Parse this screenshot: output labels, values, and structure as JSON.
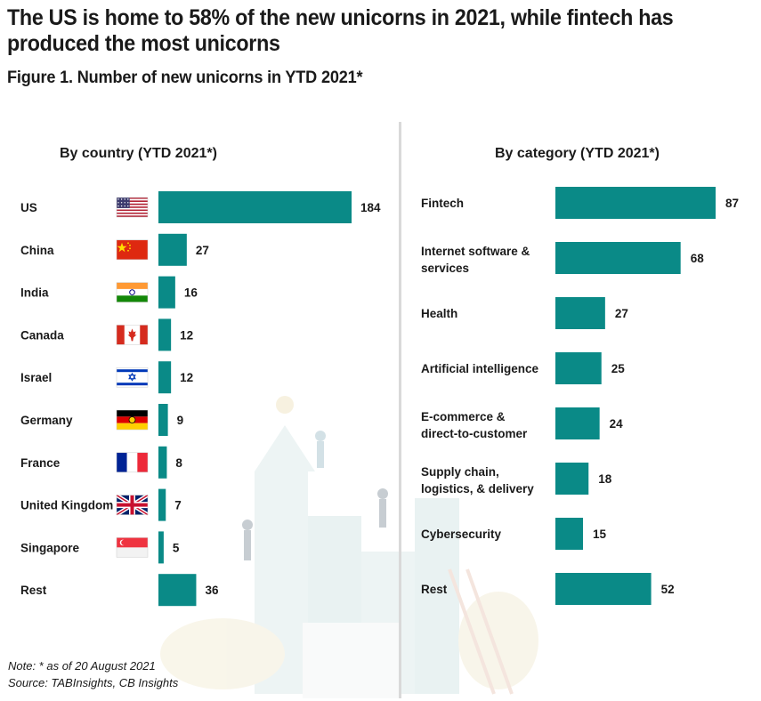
{
  "title": "The US is home to 58% of the new unicorns in 2021, while fintech has produced the most unicorns",
  "subtitle": "Figure 1. Number of new unicorns in YTD 2021*",
  "note": "Note: * as of 20 August 2021",
  "source": "Source: TABInsights, CB Insights",
  "colors": {
    "bar": "#0a8a87",
    "divider": "#d9d9d9",
    "text": "#1a1a1a"
  },
  "chart_data": [
    {
      "type": "bar",
      "orientation": "horizontal",
      "title": "By country (YTD 2021*)",
      "categories": [
        "US",
        "China",
        "India",
        "Canada",
        "Israel",
        "Germany",
        "France",
        "United Kingdom",
        "Singapore",
        "Rest"
      ],
      "icons": [
        "us-flag-icon",
        "china-flag-icon",
        "india-flag-icon",
        "canada-flag-icon",
        "israel-flag-icon",
        "germany-flag-icon",
        "france-flag-icon",
        "uk-flag-icon",
        "singapore-flag-icon",
        ""
      ],
      "values": [
        184,
        27,
        16,
        12,
        12,
        9,
        8,
        7,
        5,
        36
      ],
      "xlim": [
        0,
        184
      ],
      "grid": false
    },
    {
      "type": "bar",
      "orientation": "horizontal",
      "title": "By category (YTD 2021*)",
      "categories": [
        [
          "Fintech"
        ],
        [
          "Internet software &",
          "services"
        ],
        [
          "Health"
        ],
        [
          "Artificial intelligence"
        ],
        [
          "E-commerce &",
          "direct-to-customer"
        ],
        [
          "Supply chain,",
          "logistics, & delivery"
        ],
        [
          "Cybersecurity"
        ],
        [
          "Rest"
        ]
      ],
      "values": [
        87,
        68,
        27,
        25,
        24,
        18,
        15,
        52
      ],
      "xlim": [
        0,
        87
      ],
      "grid": false
    }
  ]
}
